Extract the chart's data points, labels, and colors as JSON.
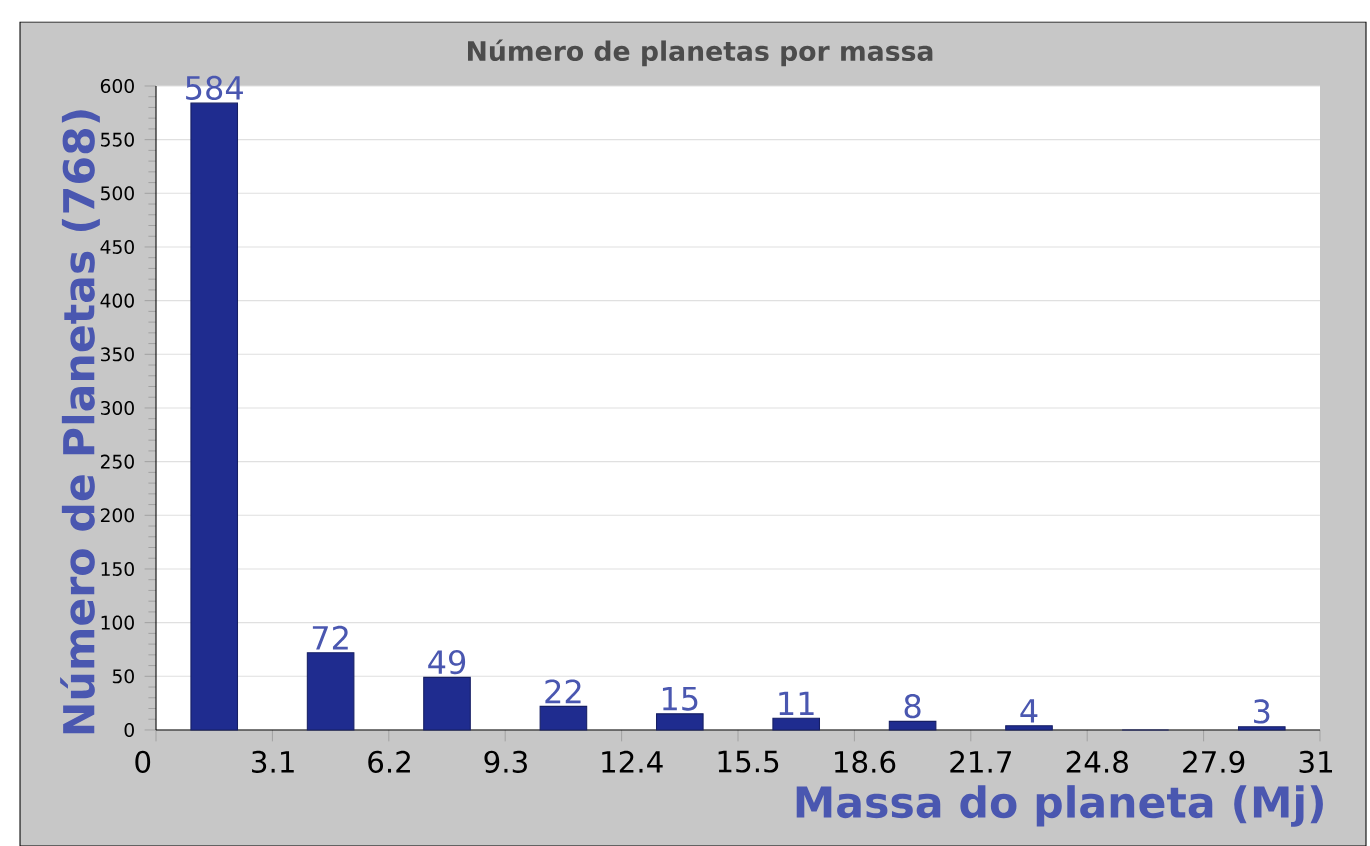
{
  "chart_data": {
    "type": "histogram",
    "title": "Número de planetas por massa",
    "xlabel": "Massa do planeta (Mj)",
    "ylabel": "Número de Planetas (768)",
    "bins": [
      0,
      3.1,
      6.2,
      9.3,
      12.4,
      15.5,
      18.6,
      21.7,
      24.8,
      27.9,
      31
    ],
    "values": [
      584,
      72,
      49,
      22,
      15,
      11,
      8,
      4,
      0,
      3
    ],
    "value_labels": [
      "584",
      "72",
      "49",
      "22",
      "15",
      "11",
      "8",
      "4",
      null,
      "3"
    ],
    "color": "#1f2c8f",
    "xlim": [
      0,
      31
    ],
    "xticks": [
      0,
      3.1,
      6.2,
      9.3,
      12.4,
      15.5,
      18.6,
      21.7,
      24.8,
      27.9,
      31
    ],
    "ylim": [
      0,
      600
    ],
    "yticks": [
      0,
      50,
      100,
      150,
      200,
      250,
      300,
      350,
      400,
      450,
      500,
      550,
      600
    ],
    "grid": "y"
  }
}
